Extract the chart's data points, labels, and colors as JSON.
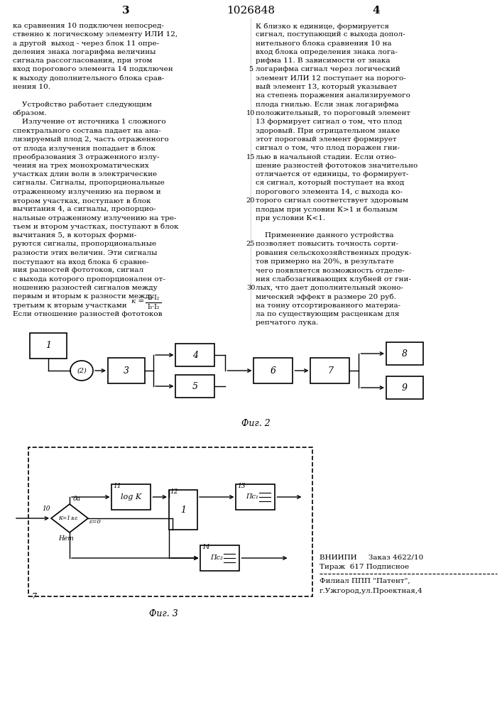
{
  "page_number_left": "3",
  "page_number_center": "1026848",
  "page_number_right": "4",
  "background_color": "#ffffff",
  "text_color": "#000000",
  "left_col_lines": [
    "ка сравнения 10 подключен непосред-",
    "ственно к логическому элементу ИЛИ 12,",
    "а другой  выход - через блок 11 опре-",
    "деления знака логарифма величины",
    "сигнала рассогласования, при этом",
    "вход порогового элемента 14 подключен",
    "к выходу дополнительного блока срав-",
    "нения 10.",
    "",
    "    Устройство работает следующим",
    "образом.",
    "    Излучение от источника 1 сложного",
    "спектрального состава падает на ана-",
    "лизируемый плод 2, часть отраженного",
    "от плода излучения попадает в блок",
    "преобразования 3 отраженного излу-",
    "чения на трех монохроматических",
    "участках длин волн в электрические",
    "сигналы. Сигналы, пропорциональные",
    "отраженному излучению на первом и",
    "втором участках, поступают в блок",
    "вычитания 4, а сигналы, пропорцио-",
    "нальные отраженному излучению на тре-",
    "тьем и втором участках, поступают в блок",
    "вычитания 5, в которых форми-",
    "руются сигналы, пропорциональные",
    "разности этих величин. Эти сигналы",
    "поступают на вход блока 6 сравне-",
    "ния разностей фототоков, сигнал",
    "с выхода которого пропорционален от-",
    "ношению разностей сигналов между",
    "первым и вторым к разности между"
  ],
  "left_col_extra": [
    "третьим к вторым участками",
    "Если отношение разностей фототоков"
  ],
  "right_col_lines": [
    "К близко к единице, формируется",
    "сигнал, поступающий с выхода допол-",
    "нительного блока сравнения 10 на",
    "вход блока определения знака лога-",
    "рифма 11. В зависимости от знака",
    "логарифма сигнал через логический",
    "элемент ИЛИ 12 поступает на порого-",
    "вый элемент 13, который указывает",
    "на степень поражения анализируемого",
    "плода гнилью. Если знак логарифма",
    "положительный, то пороговый элемент",
    "13 формирует сигнал о том, что плод",
    "здоровый. При отрицательном знаке",
    "этот пороговый элемент формирует",
    "сигнал о том, что плод поражен гни-",
    "лью в начальной стадии. Если отно-",
    "шение разностей фототоков значительно",
    "отличается от единицы, то формирует-",
    "ся сигнал, который поступает на вход",
    "порогового элемента 14, с выхода ко-",
    "торого сигнал соответствует здоровым",
    "плодам при условии К>1 и больным",
    "при условии К<1.",
    "",
    "    Применение данного устройства",
    "позволяет повысить точность сорти-",
    "рования сельскохозяйственных продук-",
    "тов примерно на 20%, в результате",
    "чего появляется возможность отделе-",
    "ния слабозагнивающих клубней от гни-",
    "лых, что дает дополнительный эконо-",
    "мический эффект в размере 20 руб.",
    "на тонну отсортированного материа-",
    "ла по существующим расценкам для",
    "репчатого лука."
  ],
  "line_numbers": [
    5,
    10,
    15,
    20,
    25,
    30
  ],
  "fig2_caption": "Фиг. 2",
  "fig3_caption": "Фиг. 3",
  "vnipi_lines": [
    "ВНИИПИ     Заказ 4622/10",
    "Тираж  617 Подписное"
  ],
  "patent_lines": [
    "Филиал ППП \"Патент\",",
    "г.Ужгород,ул.Проектная,4"
  ]
}
